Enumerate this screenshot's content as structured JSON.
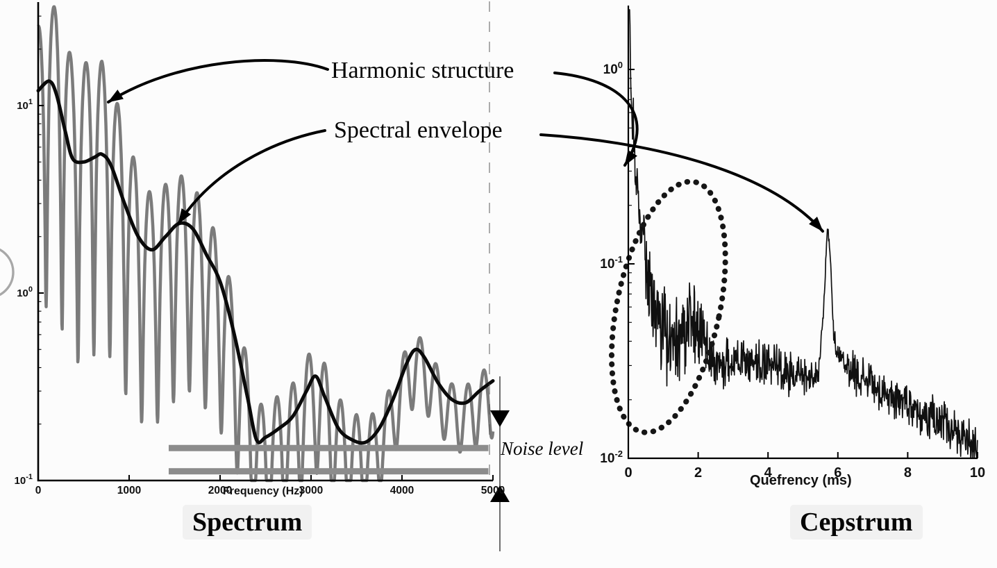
{
  "page": {
    "background": "#fcfcfc"
  },
  "labels": {
    "harmonic": "Harmonic structure",
    "envelope": "Spectral envelope",
    "noise": "Noise level",
    "spectrum_title": "Spectrum",
    "cepstrum_title": "Cepstrum",
    "spectrum_xlabel": "Frequency (Hz)",
    "cepstrum_xlabel": "Quefrency (ms)"
  },
  "chart_data": [
    {
      "id": "spectrum",
      "type": "line",
      "title": "Spectrum",
      "xlabel": "Frequency (Hz)",
      "x_range": [
        0,
        5000
      ],
      "y_scale": "log10",
      "y_range": [
        0.1,
        35
      ],
      "x_ticks": [
        0,
        1000,
        2000,
        3000,
        4000,
        5000
      ],
      "y_ticks": [
        {
          "value": 10,
          "base": "10",
          "exp": "1"
        },
        {
          "value": 1,
          "base": "10",
          "exp": "0"
        },
        {
          "value": 0.1,
          "base": "10",
          "exp": "-1"
        }
      ],
      "grid": false,
      "series": [
        {
          "name": "harmonic-structure",
          "color": "#7b7b7b",
          "width": 4.5,
          "synth": {
            "kind": "harmonic-comb",
            "f0_hz": 175,
            "power": 2,
            "peak_ratio_cp": [
              [
                0,
                2.2
              ],
              [
                300,
                3.2
              ],
              [
                600,
                3.4
              ],
              [
                900,
                2.6
              ],
              [
                1200,
                2.0
              ],
              [
                1600,
                1.8
              ],
              [
                2000,
                1.6
              ],
              [
                2600,
                1.5
              ],
              [
                3200,
                1.5
              ],
              [
                3800,
                1.25
              ],
              [
                4400,
                1.2
              ],
              [
                5000,
                1.25
              ]
            ],
            "valley_ratio_cp": [
              [
                0,
                0.06
              ],
              [
                500,
                0.085
              ],
              [
                1000,
                0.1
              ],
              [
                1500,
                0.12
              ],
              [
                2000,
                0.16
              ],
              [
                2400,
                0.28
              ],
              [
                2800,
                0.3
              ],
              [
                3200,
                0.32
              ],
              [
                3600,
                0.42
              ],
              [
                4000,
                0.5
              ],
              [
                4500,
                0.55
              ],
              [
                5000,
                0.5
              ]
            ]
          }
        },
        {
          "name": "spectral-envelope",
          "color": "#0a0a0a",
          "width": 5,
          "points": [
            [
              0,
              12
            ],
            [
              120,
              13.5
            ],
            [
              200,
              11.5
            ],
            [
              300,
              7.2
            ],
            [
              380,
              5.2
            ],
            [
              500,
              5.0
            ],
            [
              620,
              5.3
            ],
            [
              700,
              5.5
            ],
            [
              800,
              4.8
            ],
            [
              950,
              3.0
            ],
            [
              1100,
              2.0
            ],
            [
              1250,
              1.7
            ],
            [
              1400,
              2.0
            ],
            [
              1550,
              2.35
            ],
            [
              1700,
              2.2
            ],
            [
              1850,
              1.6
            ],
            [
              2000,
              1.15
            ],
            [
              2150,
              0.62
            ],
            [
              2300,
              0.28
            ],
            [
              2400,
              0.165
            ],
            [
              2500,
              0.17
            ],
            [
              2650,
              0.19
            ],
            [
              2800,
              0.22
            ],
            [
              2950,
              0.3
            ],
            [
              3050,
              0.36
            ],
            [
              3150,
              0.28
            ],
            [
              3300,
              0.19
            ],
            [
              3450,
              0.165
            ],
            [
              3600,
              0.16
            ],
            [
              3750,
              0.19
            ],
            [
              3900,
              0.27
            ],
            [
              4050,
              0.42
            ],
            [
              4150,
              0.5
            ],
            [
              4250,
              0.45
            ],
            [
              4400,
              0.33
            ],
            [
              4550,
              0.27
            ],
            [
              4700,
              0.26
            ],
            [
              4850,
              0.3
            ],
            [
              5000,
              0.34
            ]
          ]
        }
      ],
      "noise_band": {
        "label": "Noise level",
        "values": [
          0.112,
          0.149
        ],
        "f_range": [
          1435,
          4950
        ],
        "color": "#8c8c8c"
      }
    },
    {
      "id": "cepstrum",
      "type": "line",
      "title": "Cepstrum",
      "xlabel": "Quefrency (ms)",
      "x_range": [
        0,
        10
      ],
      "y_scale": "log10",
      "y_range": [
        0.01,
        2
      ],
      "x_ticks": [
        0,
        2,
        4,
        6,
        8,
        10
      ],
      "y_ticks": [
        {
          "value": 1,
          "base": "10",
          "exp": "0"
        },
        {
          "value": 0.1,
          "base": "10",
          "exp": "-1"
        },
        {
          "value": 0.01,
          "base": "10",
          "exp": "-2"
        }
      ],
      "grid": false,
      "series": [
        {
          "name": "cepstrum",
          "color": "#101010",
          "width": 1.7,
          "synth": {
            "kind": "noisy-line",
            "seed": 1337,
            "step_ms": 0.012,
            "base_cp": [
              [
                0,
                2.2
              ],
              [
                0.04,
                2.2
              ],
              [
                0.07,
                0.8
              ],
              [
                0.12,
                0.5
              ],
              [
                0.14,
                0.55
              ],
              [
                0.2,
                0.3
              ],
              [
                0.3,
                0.18
              ],
              [
                0.45,
                0.12
              ],
              [
                0.6,
                0.08
              ],
              [
                0.8,
                0.055
              ],
              [
                1.0,
                0.045
              ],
              [
                1.2,
                0.04
              ],
              [
                1.5,
                0.042
              ],
              [
                1.8,
                0.05
              ],
              [
                2.1,
                0.045
              ],
              [
                2.4,
                0.032
              ],
              [
                2.8,
                0.03
              ],
              [
                3.2,
                0.032
              ],
              [
                3.6,
                0.03
              ],
              [
                4.0,
                0.032
              ],
              [
                4.4,
                0.028
              ],
              [
                4.8,
                0.027
              ],
              [
                5.2,
                0.026
              ],
              [
                5.45,
                0.028
              ],
              [
                5.6,
                0.06
              ],
              [
                5.68,
                0.14
              ],
              [
                5.72,
                0.15
              ],
              [
                5.78,
                0.11
              ],
              [
                5.88,
                0.045
              ],
              [
                6.0,
                0.033
              ],
              [
                6.4,
                0.028
              ],
              [
                6.8,
                0.025
              ],
              [
                7.2,
                0.022
              ],
              [
                7.6,
                0.02
              ],
              [
                8.0,
                0.019
              ],
              [
                8.5,
                0.017
              ],
              [
                9.0,
                0.015
              ],
              [
                9.5,
                0.013
              ],
              [
                10,
                0.012
              ]
            ],
            "sigma_cp": [
              [
                0,
                0.02
              ],
              [
                0.1,
                0.12
              ],
              [
                0.3,
                0.2
              ],
              [
                0.6,
                0.25
              ],
              [
                1.0,
                0.28
              ],
              [
                1.5,
                0.28
              ],
              [
                2.0,
                0.25
              ],
              [
                2.5,
                0.18
              ],
              [
                3.0,
                0.15
              ],
              [
                4.0,
                0.13
              ],
              [
                5.0,
                0.12
              ],
              [
                5.5,
                0.05
              ],
              [
                5.85,
                0.05
              ],
              [
                6.1,
                0.12
              ],
              [
                7.0,
                0.12
              ],
              [
                8.0,
                0.13
              ],
              [
                10,
                0.14
              ]
            ]
          }
        }
      ],
      "cepstral_peak": {
        "quefrency_ms": 5.7,
        "value": 0.15
      },
      "highlight_ellipse": {
        "center_ms": 1.15,
        "center_value": 0.06,
        "note": "dotted ellipse around low-quefrency region"
      }
    }
  ]
}
